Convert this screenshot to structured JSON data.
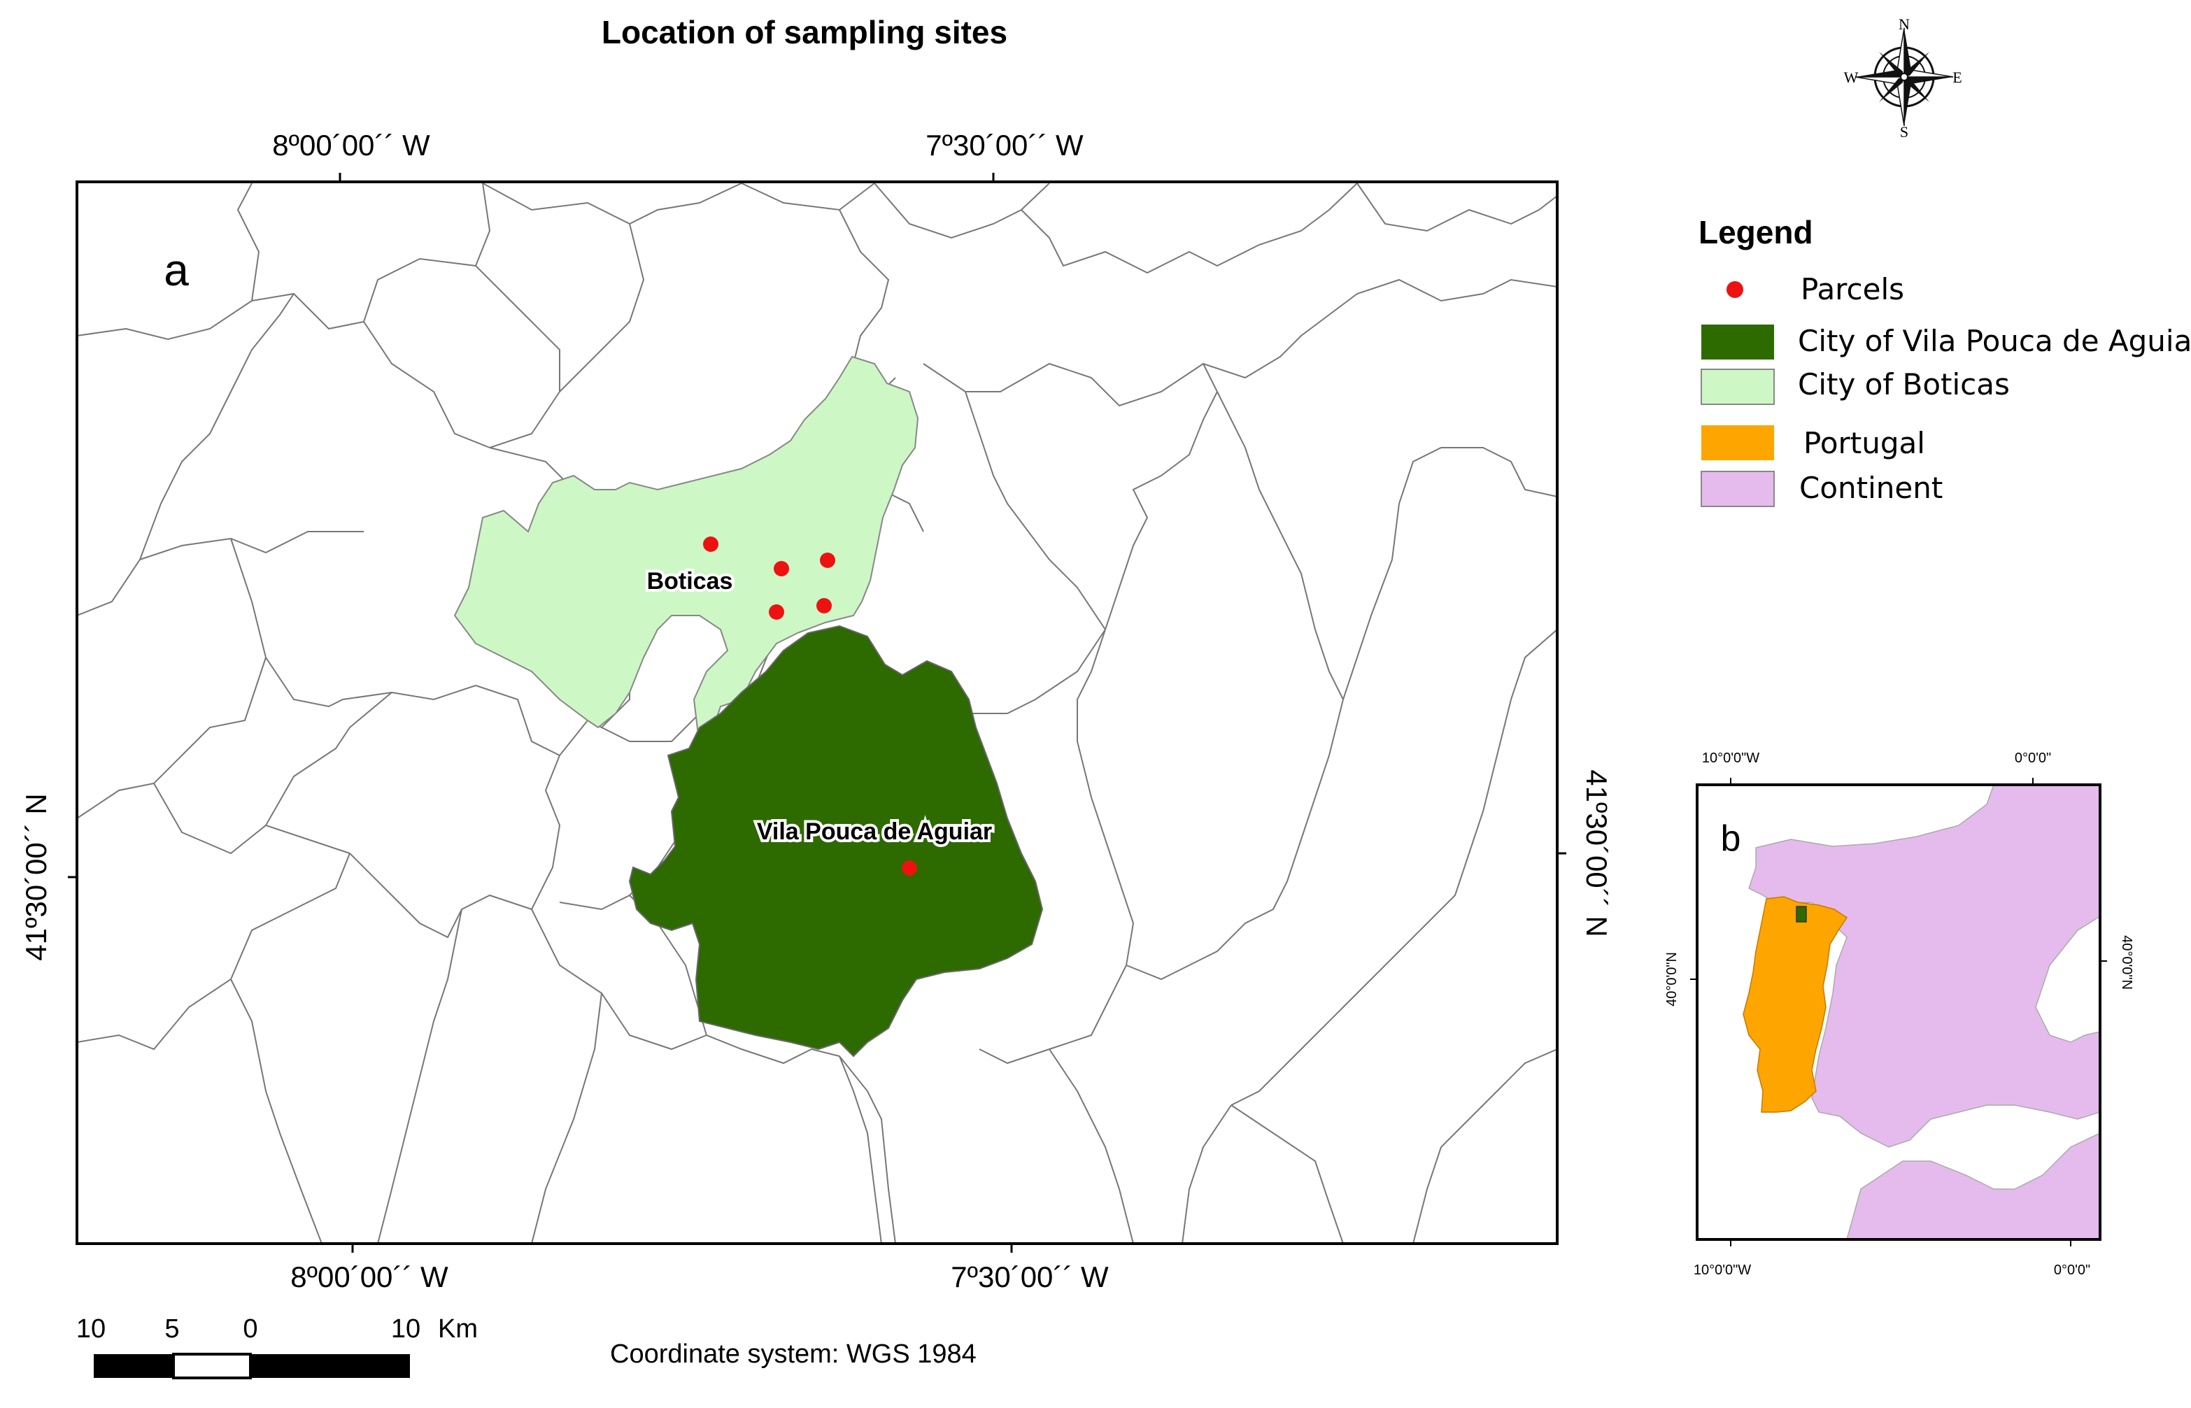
{
  "title": "Location of sampling sites",
  "compass": {
    "n": "N",
    "s": "S",
    "e": "E",
    "w": "W"
  },
  "map_a": {
    "panel_label": "a",
    "top_ticks": [
      "8º00´00´´ W",
      "7º30´00´´ W"
    ],
    "bottom_ticks": [
      "8º00´00´´ W",
      "7º30´00´´ W"
    ],
    "left_tick": "41º30´00´´ N",
    "right_tick": "41º30´00´´ N",
    "places": {
      "boticas": "Boticas",
      "vila_pouca": "Vila Pouca de Aguiar"
    },
    "colors": {
      "vila_pouca": "#2d6a00",
      "boticas": "#cdf7c4",
      "parcel": "#ee1111"
    }
  },
  "legend": {
    "heading": "Legend",
    "items": [
      {
        "label": "Parcels",
        "kind": "point",
        "color": "#ee1111"
      },
      {
        "label": "City of Vila Pouca de Aguiar",
        "kind": "patch",
        "color": "#2d6a00"
      },
      {
        "label": "City of Boticas",
        "kind": "patch",
        "color": "#cdf7c4"
      },
      {
        "label": "Portugal",
        "kind": "patch",
        "color": "#ffa500"
      },
      {
        "label": "Continent",
        "kind": "patch",
        "color": "#e5bbed"
      }
    ]
  },
  "map_b": {
    "panel_label": "b",
    "top_ticks": [
      "10°0'0\"W",
      "0°0'0\""
    ],
    "bottom_ticks": [
      "10°0'0\"W",
      "0°0'0\""
    ],
    "left_tick": "40°0'0\"N",
    "right_tick": "40°0'0\"N",
    "colors": {
      "portugal": "#ffa500",
      "continent": "#e5bbed"
    }
  },
  "scale_bar": {
    "labels": [
      "10",
      "5",
      "0",
      "10"
    ],
    "unit": "Km"
  },
  "coordinate_system": "Coordinate system: WGS 1984"
}
